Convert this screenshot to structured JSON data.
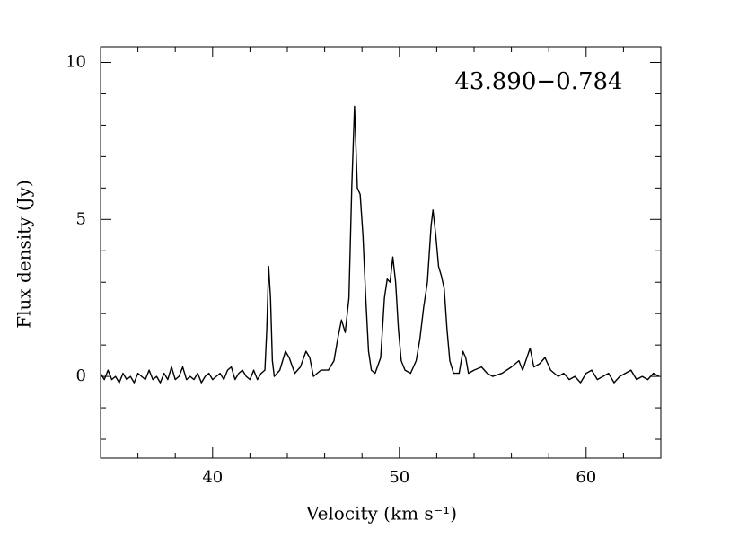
{
  "chart_data": {
    "type": "line",
    "annotation": "43.890−0.784",
    "xlabel": "Velocity (km s⁻¹)",
    "ylabel": "Flux density (Jy)",
    "xlim": [
      34,
      64
    ],
    "ylim": [
      -2.6,
      10.5
    ],
    "xticks": [
      40,
      50,
      60
    ],
    "yticks": [
      0,
      5,
      10
    ],
    "xminorticks": [
      34,
      36,
      38,
      42,
      44,
      46,
      48,
      52,
      54,
      56,
      58,
      62,
      64
    ],
    "yminorticks": [
      -2,
      -1,
      1,
      2,
      3,
      4,
      6,
      7,
      8,
      9
    ],
    "color": "#000000",
    "x": [
      34.0,
      34.2,
      34.4,
      34.6,
      34.8,
      35.0,
      35.2,
      35.4,
      35.6,
      35.8,
      36.0,
      36.2,
      36.4,
      36.6,
      36.8,
      37.0,
      37.2,
      37.4,
      37.6,
      37.8,
      38.0,
      38.2,
      38.4,
      38.6,
      38.8,
      39.0,
      39.2,
      39.4,
      39.6,
      39.8,
      40.0,
      40.2,
      40.4,
      40.6,
      40.8,
      41.0,
      41.2,
      41.4,
      41.6,
      41.8,
      42.0,
      42.2,
      42.4,
      42.6,
      42.8,
      42.9,
      43.0,
      43.1,
      43.2,
      43.3,
      43.6,
      43.9,
      44.1,
      44.4,
      44.7,
      45.0,
      45.2,
      45.4,
      45.8,
      46.2,
      46.5,
      46.7,
      46.9,
      47.1,
      47.3,
      47.45,
      47.6,
      47.75,
      47.9,
      48.05,
      48.2,
      48.35,
      48.5,
      48.7,
      49.0,
      49.2,
      49.35,
      49.5,
      49.65,
      49.8,
      49.95,
      50.1,
      50.3,
      50.6,
      50.9,
      51.1,
      51.3,
      51.5,
      51.7,
      51.8,
      51.95,
      52.1,
      52.25,
      52.4,
      52.55,
      52.7,
      52.9,
      53.2,
      53.4,
      53.55,
      53.7,
      54.0,
      54.4,
      54.7,
      55.0,
      55.5,
      56.0,
      56.4,
      56.6,
      57.0,
      57.2,
      57.5,
      57.8,
      58.1,
      58.5,
      58.8,
      59.1,
      59.4,
      59.7,
      60.0,
      60.3,
      60.6,
      60.9,
      61.2,
      61.5,
      61.8,
      62.1,
      62.4,
      62.7,
      63.0,
      63.3,
      63.6,
      63.9
    ],
    "y": [
      0.1,
      -0.1,
      0.2,
      -0.1,
      0.0,
      -0.2,
      0.1,
      -0.1,
      0.0,
      -0.2,
      0.1,
      0.0,
      -0.1,
      0.2,
      -0.1,
      0.0,
      -0.2,
      0.1,
      -0.1,
      0.3,
      -0.1,
      0.0,
      0.3,
      -0.1,
      0.0,
      -0.1,
      0.1,
      -0.2,
      0.0,
      0.1,
      -0.1,
      0.0,
      0.1,
      -0.1,
      0.2,
      0.3,
      -0.1,
      0.1,
      0.2,
      0.0,
      -0.1,
      0.2,
      -0.1,
      0.1,
      0.2,
      1.5,
      3.5,
      2.5,
      0.5,
      0.0,
      0.2,
      0.8,
      0.6,
      0.1,
      0.3,
      0.8,
      0.6,
      0.0,
      0.2,
      0.2,
      0.5,
      1.2,
      1.8,
      1.4,
      2.5,
      6.0,
      8.6,
      6.0,
      5.8,
      4.5,
      2.5,
      0.8,
      0.2,
      0.1,
      0.6,
      2.5,
      3.1,
      3.0,
      3.8,
      3.0,
      1.5,
      0.5,
      0.2,
      0.1,
      0.5,
      1.2,
      2.2,
      3.0,
      4.8,
      5.3,
      4.5,
      3.5,
      3.2,
      2.8,
      1.5,
      0.5,
      0.1,
      0.1,
      0.8,
      0.6,
      0.1,
      0.2,
      0.3,
      0.1,
      0.0,
      0.1,
      0.3,
      0.5,
      0.2,
      0.9,
      0.3,
      0.4,
      0.6,
      0.2,
      0.0,
      0.1,
      -0.1,
      0.0,
      -0.2,
      0.1,
      0.2,
      -0.1,
      0.0,
      0.1,
      -0.2,
      0.0,
      0.1,
      0.2,
      -0.1,
      0.0,
      -0.1,
      0.1,
      0.0
    ]
  }
}
